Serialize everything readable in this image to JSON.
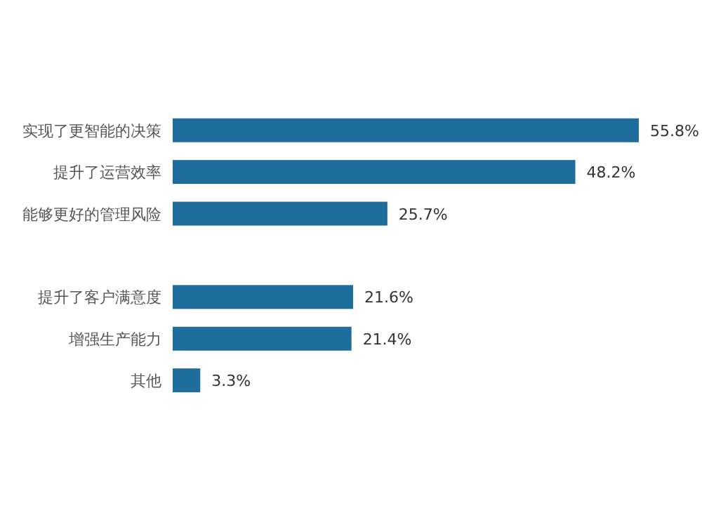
{
  "chart_data": {
    "type": "bar",
    "orientation": "horizontal",
    "categories": [
      "实现了更智能的决策",
      "提升了运营效率",
      "能够更好的管理风险",
      null,
      "提升了客户满意度",
      "增强生产能力",
      "其他"
    ],
    "values": [
      55.8,
      48.2,
      25.7,
      null,
      21.6,
      21.4,
      3.3
    ],
    "value_labels": [
      "55.8%",
      "48.2%",
      "25.7%",
      null,
      "21.6%",
      "21.4%",
      "3.3%"
    ],
    "color": "#1f6d9c"
  }
}
